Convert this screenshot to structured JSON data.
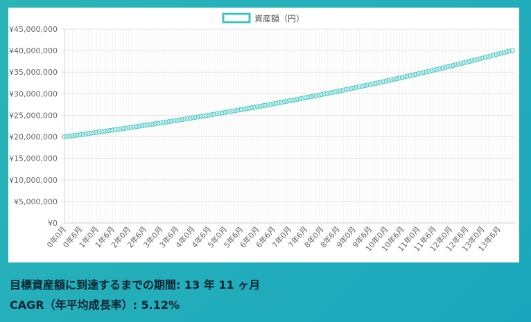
{
  "chart_data": {
    "type": "line",
    "series": [
      {
        "name": "資産額（円）",
        "color": "#3cc4be",
        "start_value": 20000000,
        "end_value": 40000000,
        "months": 167,
        "cagr": 0.0512
      }
    ],
    "x_tick_labels": [
      "0年0月",
      "0年6月",
      "1年0月",
      "1年6月",
      "2年0月",
      "2年6月",
      "3年0月",
      "3年6月",
      "4年0月",
      "4年6月",
      "5年0月",
      "5年6月",
      "6年0月",
      "6年6月",
      "7年0月",
      "7年6月",
      "8年0月",
      "8年6月",
      "9年0月",
      "9年6月",
      "10年0月",
      "10年6月",
      "11年0月",
      "11年6月",
      "12年0月",
      "12年6月",
      "13年0月",
      "13年6月"
    ],
    "y_tick_labels": [
      "¥0",
      "¥5,000,000",
      "¥10,000,000",
      "¥15,000,000",
      "¥20,000,000",
      "¥25,000,000",
      "¥30,000,000",
      "¥35,000,000",
      "¥40,000,000",
      "¥45,000,000"
    ],
    "ylim": [
      0,
      45000000
    ],
    "grid": true,
    "legend_position": "top-center"
  },
  "results": {
    "period_text": "目標資産額に到達するまでの期間: 13 年 11 ヶ月",
    "cagr_text": "CAGR（年平均成長率）: 5.12%"
  }
}
